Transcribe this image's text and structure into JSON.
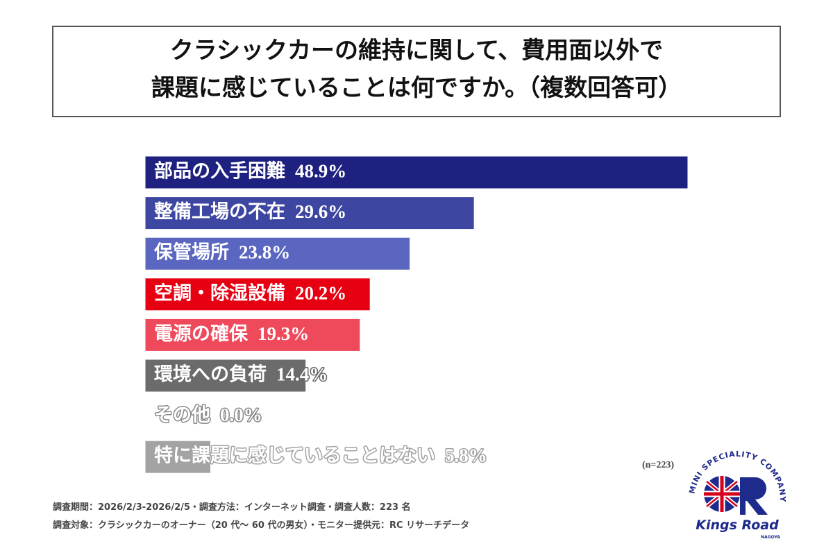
{
  "header": {
    "title_lines": [
      "クラシックカーの維持に関して、費用面以外で",
      "課題に感じていることは何ですか。（複数回答可）"
    ]
  },
  "chart_data": {
    "type": "bar",
    "orientation": "horizontal",
    "categories": [
      "部品の入手困難",
      "整備工場の不在",
      "保管場所",
      "空調・除湿設備",
      "電源の確保",
      "環境への負荷",
      "その他",
      "特に課題に感じていることはない"
    ],
    "values": [
      48.9,
      29.6,
      23.8,
      20.2,
      19.3,
      14.4,
      0.0,
      5.8
    ],
    "value_labels": [
      "48.9%",
      "29.6%",
      "23.8%",
      "20.2%",
      "19.3%",
      "14.4%",
      "0.0%",
      "5.8%"
    ],
    "colors": [
      "#1e2180",
      "#3d46a0",
      "#5a66c0",
      "#e60012",
      "#ef4a5c",
      "#6b6b6b",
      "#8a8a8a",
      "#a3a3a3"
    ]
  },
  "sample_size": "(n=223)",
  "footnotes": [
    "調査期間：2026/2/3-2026/2/5・調査方法：インターネット調査・調査人数：223 名",
    "調査対象：クラシックカーのオーナー（20 代～ 60 代の男女）・モニター提供元：RC リサーチデータ"
  ],
  "logo": {
    "arc_text": "MINI SPECIALITY COMPANY",
    "name": "Kings Road",
    "city": "NAGOYA"
  }
}
